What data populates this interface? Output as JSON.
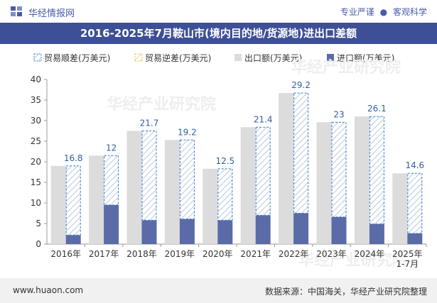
{
  "header": {
    "brand": "华经情报网",
    "slogan_left": "专业严谨",
    "slogan_sep": "●",
    "slogan_right": "客观科学",
    "icon": "huajing-logo-icon"
  },
  "footer": {
    "website": "www.huaon.com",
    "source": "数据来源：中国海关，华经产业研究院整理"
  },
  "watermark": "华经产业研究院",
  "colors": {
    "header_bg": "#3d4f96",
    "export_bar": "#dcdcdc",
    "import_bar": "#5b6ba8",
    "surplus_border": "#3a7bc8",
    "deficit_border": "#e0c34a",
    "hatch_line": "#b8c9dc"
  },
  "chart_data": {
    "type": "bar",
    "title": "2016-2025年7月鞍山市(境内目的地/货源地)进出口差额",
    "categories": [
      "2016年",
      "2017年",
      "2018年",
      "2019年",
      "2020年",
      "2021年",
      "2022年",
      "2023年",
      "2024年",
      "2025年\n1-7月"
    ],
    "series": [
      {
        "name": "贸易顺差(万美元)",
        "values": [
          16.8,
          12,
          21.7,
          19.2,
          12.5,
          21.4,
          29.2,
          23,
          26.1,
          14.6
        ]
      },
      {
        "name": "贸易逆差(万美元)",
        "values": [
          0,
          0,
          0,
          0,
          0,
          0,
          0,
          0,
          0,
          0
        ]
      },
      {
        "name": "出口额(万美元)",
        "values": [
          19,
          21.5,
          27.5,
          25.3,
          18.3,
          28.4,
          36.7,
          29.6,
          31.0,
          17.2
        ]
      },
      {
        "name": "进口额(万美元)",
        "values": [
          2.2,
          9.5,
          5.8,
          6.1,
          5.8,
          7.0,
          7.5,
          6.6,
          4.9,
          2.6
        ]
      }
    ],
    "data_labels": [
      "16.8",
      "12",
      "21.7",
      "19.2",
      "12.5",
      "21.4",
      "29.2",
      "23",
      "26.1",
      "14.6"
    ],
    "ylim": [
      0,
      40
    ],
    "yticks": [
      0,
      5,
      10,
      15,
      20,
      25,
      30,
      35,
      40
    ],
    "grid": false,
    "legend_position": "top"
  }
}
